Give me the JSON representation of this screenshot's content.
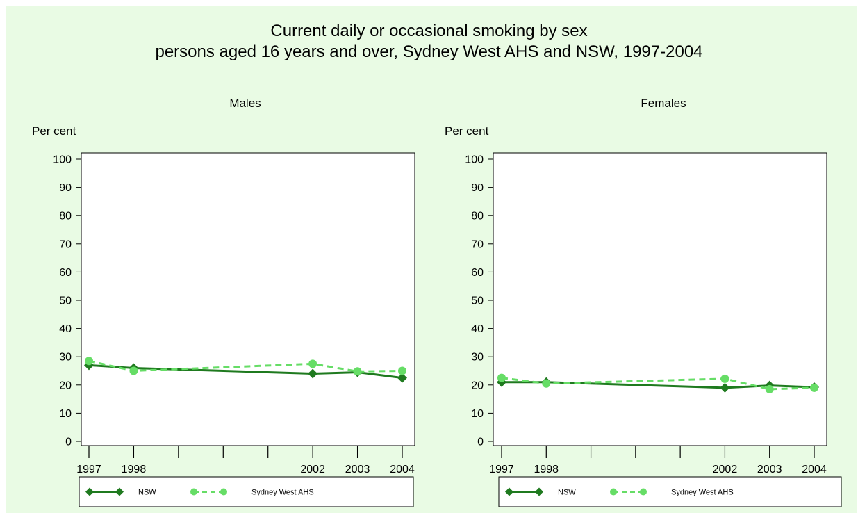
{
  "title": {
    "line1": "Current daily or occasional smoking by sex",
    "line2": "persons aged 16 years and over, Sydney West AHS and NSW, 1997-2004"
  },
  "colors": {
    "background": "#e9fbe4",
    "plot_background": "#ffffff",
    "nsw": "#1f7a1f",
    "sydney_west": "#66dd66"
  },
  "chart_data": [
    {
      "type": "line",
      "title": "Males",
      "ylabel": "Per cent",
      "xlabel": "",
      "x": [
        1997,
        1998,
        2002,
        2003,
        2004
      ],
      "x_tick_labels": [
        "1997",
        "1998",
        "2002",
        "2003",
        "2004"
      ],
      "x_minor_ticks": [
        1999,
        2000,
        2001
      ],
      "xlim": [
        1997,
        2004
      ],
      "ylim": [
        0,
        100
      ],
      "y_ticks": [
        0,
        10,
        20,
        30,
        40,
        50,
        60,
        70,
        80,
        90,
        100
      ],
      "grid": false,
      "legend_position": "bottom",
      "series": [
        {
          "name": "NSW",
          "values": [
            27.0,
            26.0,
            24.0,
            24.5,
            22.5
          ],
          "marker": "diamond",
          "dash": "solid",
          "color": "#1f7a1f"
        },
        {
          "name": "Sydney West AHS",
          "values": [
            28.5,
            25.0,
            27.5,
            24.8,
            25.0
          ],
          "marker": "circle",
          "dash": "dashed",
          "color": "#66dd66"
        }
      ]
    },
    {
      "type": "line",
      "title": "Females",
      "ylabel": "Per cent",
      "xlabel": "",
      "x": [
        1997,
        1998,
        2002,
        2003,
        2004
      ],
      "x_tick_labels": [
        "1997",
        "1998",
        "2002",
        "2003",
        "2004"
      ],
      "x_minor_ticks": [
        1999,
        2000,
        2001
      ],
      "xlim": [
        1997,
        2004
      ],
      "ylim": [
        0,
        100
      ],
      "y_ticks": [
        0,
        10,
        20,
        30,
        40,
        50,
        60,
        70,
        80,
        90,
        100
      ],
      "grid": false,
      "legend_position": "bottom",
      "series": [
        {
          "name": "NSW",
          "values": [
            21.0,
            21.0,
            19.0,
            19.8,
            19.2
          ],
          "marker": "diamond",
          "dash": "solid",
          "color": "#1f7a1f"
        },
        {
          "name": "Sydney West AHS",
          "values": [
            22.5,
            20.5,
            22.2,
            18.5,
            19.0
          ],
          "marker": "circle",
          "dash": "dashed",
          "color": "#66dd66"
        }
      ]
    }
  ]
}
